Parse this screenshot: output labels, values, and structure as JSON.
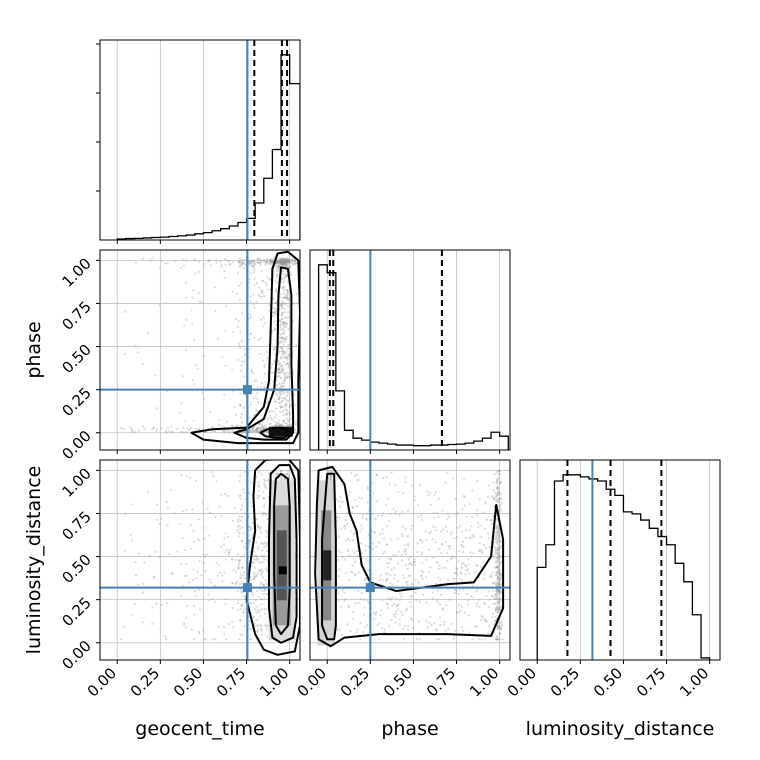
{
  "chart_data": {
    "type": "corner",
    "parameters": [
      "geocent_time",
      "phase",
      "luminosity_distance"
    ],
    "axis_labels": {
      "geocent_time": "geocent_time",
      "phase": "phase",
      "luminosity_distance": "luminosity_distance"
    },
    "tick_labels": [
      "0.00",
      "0.25",
      "0.50",
      "0.75",
      "1.00"
    ],
    "tick_values": [
      0,
      0.25,
      0.5,
      0.75,
      1.0
    ],
    "axis_range": [
      -0.1,
      1.06
    ],
    "truths": {
      "geocent_time": 0.755,
      "phase": 0.25,
      "luminosity_distance": 0.32
    },
    "quantiles": {
      "geocent_time": [
        0.795,
        0.955,
        0.985
      ],
      "phase": [
        0.015,
        0.035,
        0.665
      ],
      "luminosity_distance": [
        0.175,
        0.425,
        0.72
      ]
    },
    "histograms": {
      "geocent_time": {
        "edges": [
          0.0,
          0.05,
          0.1,
          0.15,
          0.2,
          0.25,
          0.3,
          0.35,
          0.4,
          0.45,
          0.5,
          0.55,
          0.6,
          0.65,
          0.7,
          0.75,
          0.8,
          0.85,
          0.9,
          0.95,
          1.0,
          1.06
        ],
        "counts": [
          0.005,
          0.007,
          0.008,
          0.01,
          0.012,
          0.014,
          0.017,
          0.02,
          0.024,
          0.03,
          0.036,
          0.045,
          0.055,
          0.068,
          0.085,
          0.105,
          0.18,
          0.3,
          0.44,
          0.9,
          0.76
        ]
      },
      "phase": {
        "edges": [
          -0.05,
          0.0,
          0.05,
          0.1,
          0.15,
          0.2,
          0.25,
          0.3,
          0.35,
          0.4,
          0.45,
          0.5,
          0.55,
          0.6,
          0.65,
          0.7,
          0.75,
          0.8,
          0.85,
          0.9,
          0.95,
          1.0,
          1.05
        ],
        "counts": [
          0.94,
          0.9,
          0.3,
          0.1,
          0.06,
          0.05,
          0.04,
          0.035,
          0.03,
          0.025,
          0.025,
          0.022,
          0.022,
          0.025,
          0.025,
          0.028,
          0.03,
          0.035,
          0.045,
          0.06,
          0.09,
          0.07
        ]
      },
      "luminosity_distance": {
        "edges": [
          0.0,
          0.05,
          0.1,
          0.15,
          0.2,
          0.25,
          0.3,
          0.35,
          0.4,
          0.45,
          0.5,
          0.55,
          0.6,
          0.65,
          0.7,
          0.75,
          0.8,
          0.85,
          0.9,
          0.95,
          1.0
        ],
        "counts": [
          0.45,
          0.56,
          0.87,
          0.9,
          0.9,
          0.89,
          0.88,
          0.87,
          0.83,
          0.8,
          0.72,
          0.71,
          0.68,
          0.64,
          0.6,
          0.56,
          0.47,
          0.38,
          0.22,
          0.01
        ]
      }
    },
    "contours": {
      "phase_vs_geocent_time": [
        [
          [
            0.83,
            0.0
          ],
          [
            0.87,
            0.02
          ],
          [
            0.93,
            0.03
          ],
          [
            0.97,
            0.025
          ],
          [
            1.0,
            0.0
          ],
          [
            0.97,
            -0.03
          ],
          [
            0.92,
            -0.03
          ],
          [
            0.86,
            -0.02
          ]
        ],
        [
          [
            0.68,
            0.0
          ],
          [
            0.75,
            0.02
          ],
          [
            0.85,
            0.08
          ],
          [
            0.91,
            0.25
          ],
          [
            0.93,
            0.5
          ],
          [
            0.935,
            0.8
          ],
          [
            0.95,
            0.96
          ],
          [
            0.99,
            0.95
          ],
          [
            1.01,
            0.8
          ],
          [
            1.01,
            0.4
          ],
          [
            1.02,
            0.1
          ],
          [
            1.02,
            0.0
          ],
          [
            0.98,
            -0.04
          ],
          [
            0.85,
            -0.04
          ],
          [
            0.75,
            -0.03
          ]
        ],
        [
          [
            0.43,
            0.0
          ],
          [
            0.55,
            0.02
          ],
          [
            0.75,
            0.03
          ],
          [
            0.85,
            0.15
          ],
          [
            0.88,
            0.3
          ],
          [
            0.89,
            0.6
          ],
          [
            0.9,
            0.95
          ],
          [
            0.93,
            1.04
          ],
          [
            0.99,
            1.05
          ],
          [
            1.05,
            1.0
          ],
          [
            1.06,
            0.7
          ],
          [
            1.05,
            0.3
          ],
          [
            1.05,
            0.0
          ],
          [
            1.02,
            -0.06
          ],
          [
            0.9,
            -0.06
          ],
          [
            0.7,
            -0.06
          ],
          [
            0.5,
            -0.04
          ]
        ]
      ],
      "luminosity_distance_vs_geocent_time": [
        [
          [
            0.92,
            0.95
          ],
          [
            0.95,
            0.98
          ],
          [
            0.99,
            0.95
          ],
          [
            1.0,
            0.8
          ],
          [
            1.0,
            0.3
          ],
          [
            0.99,
            0.1
          ],
          [
            0.95,
            0.05
          ],
          [
            0.92,
            0.1
          ],
          [
            0.91,
            0.4
          ],
          [
            0.91,
            0.8
          ]
        ],
        [
          [
            0.89,
            0.98
          ],
          [
            0.94,
            1.03
          ],
          [
            1.0,
            1.03
          ],
          [
            1.03,
            0.95
          ],
          [
            1.04,
            0.6
          ],
          [
            1.04,
            0.15
          ],
          [
            1.02,
            0.03
          ],
          [
            0.95,
            0.0
          ],
          [
            0.9,
            0.03
          ],
          [
            0.88,
            0.2
          ],
          [
            0.88,
            0.6
          ]
        ],
        [
          [
            0.8,
            1.0
          ],
          [
            0.86,
            1.06
          ],
          [
            0.99,
            1.07
          ],
          [
            1.05,
            1.0
          ],
          [
            1.06,
            0.6
          ],
          [
            1.06,
            0.1
          ],
          [
            1.03,
            -0.05
          ],
          [
            0.93,
            -0.07
          ],
          [
            0.85,
            -0.04
          ],
          [
            0.8,
            0.05
          ],
          [
            0.75,
            0.25
          ],
          [
            0.77,
            0.45
          ],
          [
            0.8,
            0.65
          ],
          [
            0.79,
            0.85
          ]
        ]
      ],
      "luminosity_distance_vs_phase": [
        [
          [
            0.0,
            0.98
          ],
          [
            0.04,
            0.98
          ],
          [
            0.05,
            0.6
          ],
          [
            0.05,
            0.1
          ],
          [
            0.04,
            0.02
          ],
          [
            0.0,
            0.02
          ],
          [
            -0.03,
            0.1
          ],
          [
            -0.03,
            0.6
          ]
        ],
        [
          [
            -0.05,
            1.0
          ],
          [
            0.03,
            1.02
          ],
          [
            0.1,
            0.92
          ],
          [
            0.13,
            0.75
          ],
          [
            0.17,
            0.65
          ],
          [
            0.2,
            0.45
          ],
          [
            0.25,
            0.35
          ],
          [
            0.4,
            0.3
          ],
          [
            0.55,
            0.32
          ],
          [
            0.7,
            0.34
          ],
          [
            0.85,
            0.35
          ],
          [
            0.95,
            0.5
          ],
          [
            0.98,
            0.8
          ],
          [
            1.02,
            0.6
          ],
          [
            1.02,
            0.2
          ],
          [
            0.95,
            0.04
          ],
          [
            0.7,
            0.05
          ],
          [
            0.5,
            0.05
          ],
          [
            0.3,
            0.05
          ],
          [
            0.1,
            0.03
          ],
          [
            0.02,
            -0.02
          ],
          [
            -0.05,
            0.02
          ],
          [
            -0.07,
            0.4
          ],
          [
            -0.06,
            0.8
          ]
        ]
      ]
    },
    "density_peaks": {
      "phase_vs_geocent_time": [
        0.96,
        0.0
      ],
      "luminosity_distance_vs_geocent_time": [
        0.96,
        0.42
      ],
      "luminosity_distance_vs_phase": [
        0.0,
        0.42
      ]
    },
    "colors": {
      "truth": "#4682b4",
      "hist": "#000000",
      "grid": "#c0c0c0",
      "points": "#999999"
    },
    "grid": true
  }
}
